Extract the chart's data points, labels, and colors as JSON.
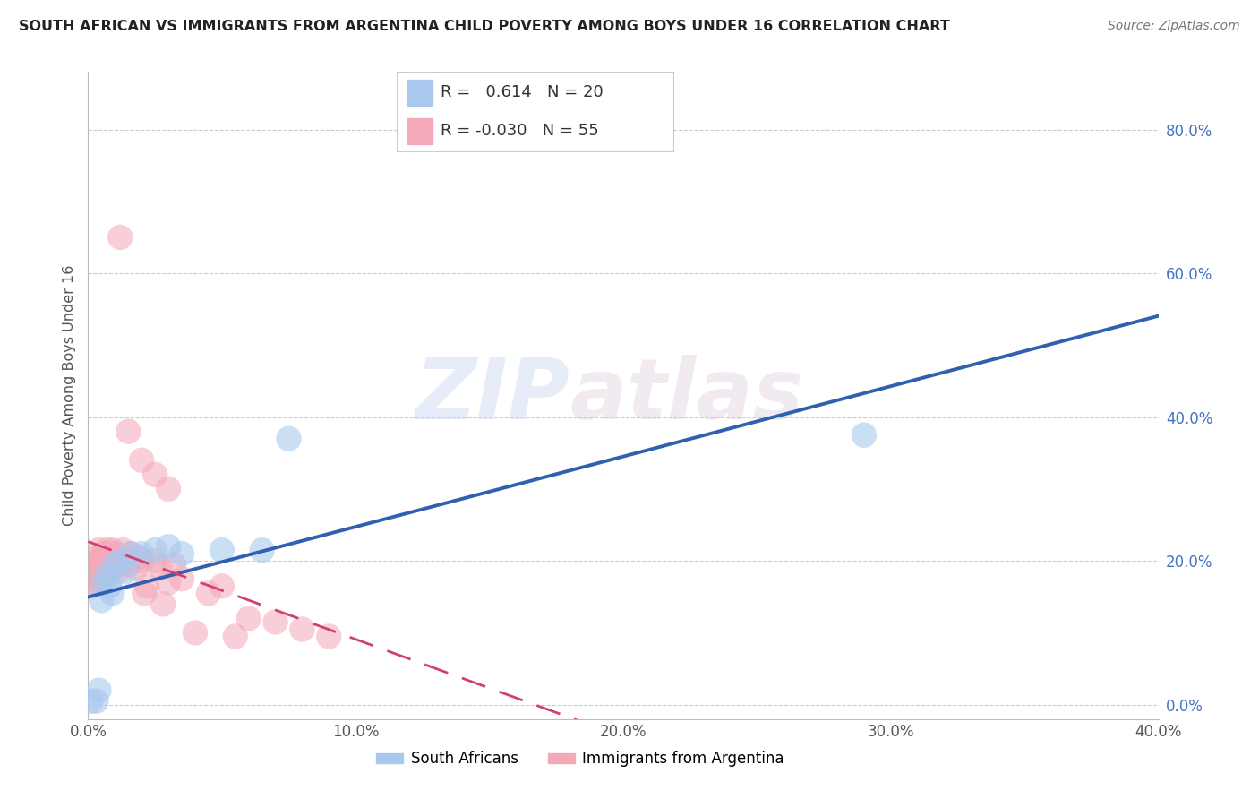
{
  "title": "SOUTH AFRICAN VS IMMIGRANTS FROM ARGENTINA CHILD POVERTY AMONG BOYS UNDER 16 CORRELATION CHART",
  "source": "Source: ZipAtlas.com",
  "ylabel": "Child Poverty Among Boys Under 16",
  "xmin": 0.0,
  "xmax": 0.4,
  "ymin": -0.02,
  "ymax": 0.88,
  "yticks": [
    0.0,
    0.2,
    0.4,
    0.6,
    0.8
  ],
  "xticks": [
    0.0,
    0.1,
    0.2,
    0.3,
    0.4
  ],
  "blue_R": "0.614",
  "blue_N": "20",
  "pink_R": "-0.030",
  "pink_N": "55",
  "blue_color": "#a8c8ee",
  "pink_color": "#f4a8b8",
  "blue_line_color": "#3060b0",
  "pink_line_color": "#d04070",
  "legend1": "South Africans",
  "legend2": "Immigrants from Argentina",
  "watermark_zip": "ZIP",
  "watermark_atlas": "atlas",
  "title_fontsize": 11.5,
  "source_fontsize": 10,
  "blue_scatter_x": [
    0.001,
    0.003,
    0.004,
    0.005,
    0.006,
    0.007,
    0.008,
    0.009,
    0.01,
    0.012,
    0.014,
    0.016,
    0.02,
    0.025,
    0.03,
    0.035,
    0.05,
    0.065,
    0.075,
    0.29
  ],
  "blue_scatter_y": [
    0.005,
    0.005,
    0.02,
    0.145,
    0.17,
    0.18,
    0.165,
    0.155,
    0.195,
    0.2,
    0.185,
    0.21,
    0.21,
    0.215,
    0.22,
    0.21,
    0.215,
    0.215,
    0.37,
    0.375
  ],
  "pink_scatter_x": [
    0.001,
    0.001,
    0.002,
    0.002,
    0.003,
    0.003,
    0.003,
    0.004,
    0.004,
    0.004,
    0.005,
    0.005,
    0.005,
    0.006,
    0.006,
    0.007,
    0.007,
    0.008,
    0.008,
    0.009,
    0.009,
    0.01,
    0.01,
    0.011,
    0.011,
    0.012,
    0.013,
    0.014,
    0.015,
    0.016,
    0.017,
    0.018,
    0.019,
    0.02,
    0.021,
    0.022,
    0.025,
    0.027,
    0.028,
    0.03,
    0.032,
    0.035,
    0.04,
    0.045,
    0.05,
    0.055,
    0.06,
    0.07,
    0.08,
    0.09,
    0.012,
    0.015,
    0.02,
    0.025,
    0.03
  ],
  "pink_scatter_y": [
    0.175,
    0.165,
    0.185,
    0.17,
    0.205,
    0.195,
    0.18,
    0.215,
    0.2,
    0.19,
    0.2,
    0.185,
    0.175,
    0.195,
    0.21,
    0.2,
    0.215,
    0.185,
    0.195,
    0.2,
    0.215,
    0.195,
    0.21,
    0.185,
    0.2,
    0.195,
    0.215,
    0.2,
    0.195,
    0.21,
    0.2,
    0.19,
    0.205,
    0.2,
    0.155,
    0.165,
    0.2,
    0.19,
    0.14,
    0.17,
    0.195,
    0.175,
    0.1,
    0.155,
    0.165,
    0.095,
    0.12,
    0.115,
    0.105,
    0.095,
    0.65,
    0.38,
    0.34,
    0.32,
    0.3
  ]
}
